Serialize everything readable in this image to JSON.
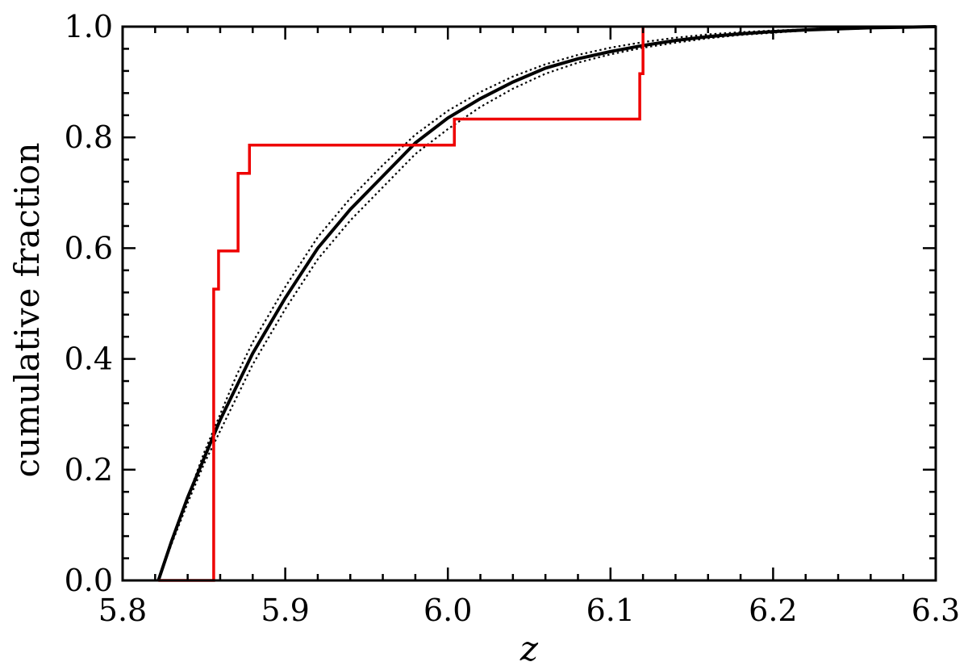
{
  "chart_data": {
    "type": "line",
    "title": "",
    "xlabel": "z",
    "ylabel": "cumulative fraction",
    "xlim": [
      5.8,
      6.3
    ],
    "ylim": [
      0.0,
      1.0
    ],
    "grid": false,
    "x_ticks": [
      5.8,
      5.9,
      6.0,
      6.1,
      6.2,
      6.3
    ],
    "x_tick_labels": [
      "5.8",
      "5.9",
      "6.0",
      "6.1",
      "6.2",
      "6.3"
    ],
    "y_ticks": [
      0.0,
      0.2,
      0.4,
      0.6,
      0.8,
      1.0
    ],
    "y_tick_labels": [
      "0.0",
      "0.2",
      "0.4",
      "0.6",
      "0.8",
      "1.0"
    ],
    "x_minor_step": 0.02,
    "y_minor_step": 0.04,
    "colors": {
      "step": "#ee0000",
      "model": "#000000"
    },
    "series": [
      {
        "style": "solid",
        "x": [
          5.822,
          5.83,
          5.84,
          5.85,
          5.86,
          5.87,
          5.88,
          5.9,
          5.92,
          5.94,
          5.96,
          5.98,
          6.0,
          6.02,
          6.04,
          6.06,
          6.08,
          6.1,
          6.12,
          6.14,
          6.16,
          6.18,
          6.2,
          6.22,
          6.24,
          6.26,
          6.28,
          6.3
        ],
        "y": [
          0.0,
          0.07,
          0.15,
          0.22,
          0.29,
          0.35,
          0.41,
          0.51,
          0.6,
          0.67,
          0.73,
          0.79,
          0.835,
          0.87,
          0.9,
          0.925,
          0.942,
          0.955,
          0.966,
          0.975,
          0.982,
          0.987,
          0.991,
          0.994,
          0.996,
          0.998,
          0.999,
          1.0
        ]
      },
      {
        "style": "dotted",
        "x": [
          5.822,
          5.83,
          5.84,
          5.85,
          5.86,
          5.87,
          5.88,
          5.9,
          5.92,
          5.94,
          5.96,
          5.98,
          6.0,
          6.02,
          6.04,
          6.06,
          6.08,
          6.1,
          6.12,
          6.14,
          6.16,
          6.18,
          6.2,
          6.22,
          6.24,
          6.26,
          6.28,
          6.3
        ],
        "y": [
          0.0,
          0.07,
          0.15,
          0.23,
          0.3,
          0.37,
          0.43,
          0.53,
          0.62,
          0.69,
          0.75,
          0.805,
          0.848,
          0.882,
          0.91,
          0.932,
          0.949,
          0.962,
          0.972,
          0.98,
          0.986,
          0.99,
          0.993,
          0.995,
          0.997,
          0.998,
          0.999,
          1.0
        ]
      },
      {
        "style": "dotted",
        "x": [
          5.822,
          5.83,
          5.84,
          5.85,
          5.86,
          5.87,
          5.88,
          5.9,
          5.92,
          5.94,
          5.96,
          5.98,
          6.0,
          6.02,
          6.04,
          6.06,
          6.08,
          6.1,
          6.12,
          6.14,
          6.16,
          6.18,
          6.2,
          6.22,
          6.24,
          6.26,
          6.28,
          6.3
        ],
        "y": [
          0.0,
          0.065,
          0.14,
          0.21,
          0.27,
          0.33,
          0.39,
          0.49,
          0.58,
          0.65,
          0.71,
          0.77,
          0.815,
          0.855,
          0.888,
          0.915,
          0.935,
          0.95,
          0.962,
          0.971,
          0.979,
          0.985,
          0.989,
          0.993,
          0.995,
          0.997,
          0.999,
          1.0
        ]
      },
      {
        "style": "step",
        "x": [
          5.822,
          5.856,
          5.856,
          5.859,
          5.859,
          5.871,
          5.871,
          5.878,
          5.878,
          6.004,
          6.004,
          6.118,
          6.118,
          6.12,
          6.12
        ],
        "y": [
          0.0,
          0.0,
          0.526,
          0.526,
          0.595,
          0.595,
          0.735,
          0.735,
          0.786,
          0.786,
          0.833,
          0.833,
          0.915,
          0.915,
          1.0
        ]
      }
    ]
  }
}
